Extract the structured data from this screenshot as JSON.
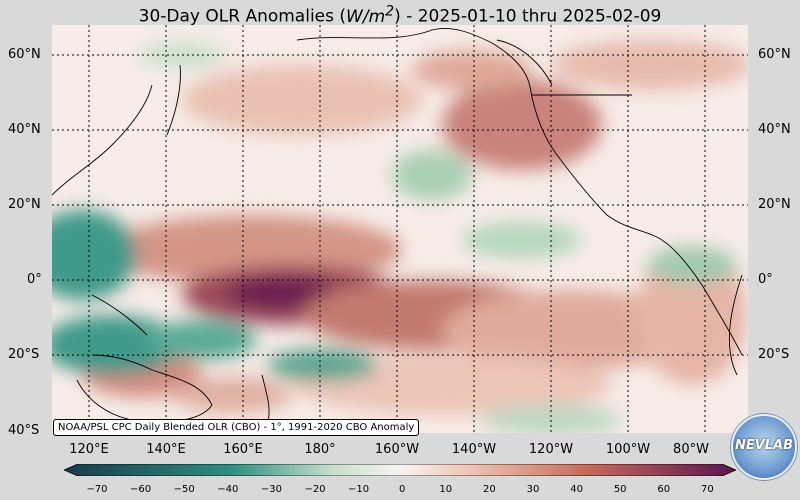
{
  "title": {
    "main": "30-Day OLR Anomalies (",
    "unit": "W/m",
    "sup": "2",
    "close": ")",
    "range": " - 2025-01-10 thru 2025-02-09"
  },
  "lat_labels": [
    "60°N",
    "40°N",
    "20°N",
    "0°",
    "20°S",
    "40°S"
  ],
  "lon_labels": [
    "120°E",
    "140°E",
    "160°E",
    "180°",
    "160°W",
    "140°W",
    "120°W",
    "100°W",
    "80°W"
  ],
  "source": "NOAA/PSL CPC Daily Blended OLR (CBO) - 1°, 1991-2020 CBO Anomaly",
  "colorbar": {
    "ticks": [
      "−70",
      "−60",
      "−50",
      "−40",
      "−30",
      "−20",
      "−10",
      "0",
      "10",
      "20",
      "30",
      "40",
      "50",
      "60",
      "70"
    ],
    "colors": {
      "neg_max": "#1a3a4a",
      "neg_mid": "#2f8f80",
      "neg_low": "#c7e0cc",
      "zero": "#f7f4f2",
      "pos_low": "#efc7b5",
      "pos_mid": "#c56a5a",
      "pos_max": "#5a1450"
    }
  },
  "logo": {
    "text": "NEVLAB"
  }
}
